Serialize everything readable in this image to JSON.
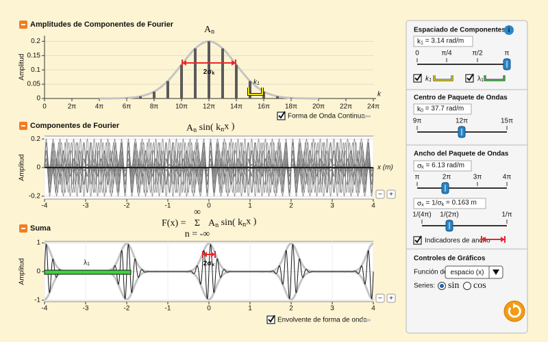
{
  "amplitudes": {
    "title": "Amplitudes de Componentes de Fourier",
    "formula": [
      {
        "text": "A"
      },
      {
        "text": "n",
        "sub": true
      }
    ],
    "y_label": "Amplitud",
    "x_label": "k",
    "k": [
      18.85,
      21.99,
      25.13,
      28.27,
      31.42,
      34.56,
      37.7,
      40.84,
      43.98,
      47.12,
      50.27,
      53.41,
      56.55
    ],
    "values": [
      0.0018,
      0.0075,
      0.024,
      0.061,
      0.118,
      0.175,
      0.2,
      0.175,
      0.118,
      0.061,
      0.024,
      0.0075,
      0.0018
    ],
    "envelope": {
      "k": [
        12.57,
        15.71,
        18.85,
        21.99,
        25.13,
        28.27,
        31.42,
        34.56,
        37.7,
        40.84,
        43.98,
        47.12,
        50.27,
        53.41,
        56.55,
        59.69,
        62.83
      ],
      "values": [
        0,
        0.0003,
        0.0018,
        0.0075,
        0.024,
        0.061,
        0.118,
        0.175,
        0.2,
        0.175,
        0.118,
        0.061,
        0.024,
        0.0075,
        0.0018,
        0.0003,
        0
      ]
    },
    "xlim": [
      0,
      75.4
    ],
    "xticks": [
      0,
      {
        "value": 6.283,
        "label": "2π"
      },
      {
        "value": 12.566,
        "label": "4π"
      },
      {
        "value": 18.85,
        "label": "6π"
      },
      {
        "value": 25.13,
        "label": "8π"
      },
      {
        "value": 31.42,
        "label": "10π"
      },
      {
        "value": 37.7,
        "label": "12π"
      },
      {
        "value": 43.98,
        "label": "14π"
      },
      {
        "value": 50.27,
        "label": "16π"
      },
      {
        "value": 56.55,
        "label": "18π"
      },
      {
        "value": 62.83,
        "label": "20π"
      },
      {
        "value": 69.12,
        "label": "22π"
      },
      {
        "value": 75.4,
        "label": "24π"
      }
    ],
    "ylim": [
      0,
      0.22
    ],
    "yticks": [
      0,
      0.05,
      0.1,
      0.15,
      0.2
    ],
    "width_label": [
      {
        "text": "2σ"
      },
      {
        "text": "k",
        "sub": true
      }
    ],
    "k1_label": [
      {
        "text": "k"
      },
      {
        "text": "1",
        "sub": true
      }
    ],
    "legend": "Forma de Onda Continua",
    "colors": {
      "bars": "#5a5a5a",
      "envelope": "#c4c4c4"
    }
  },
  "components": {
    "title": "Componentes de Fourier",
    "formula": [
      {
        "text": "A"
      },
      {
        "text": "n",
        "sub": true
      },
      {
        "text": " sin( "
      },
      {
        "text": "k"
      },
      {
        "text": "n",
        "sub": true
      },
      {
        "text": "x )"
      }
    ],
    "y_label": "Amplitud",
    "x_label": "x (m)",
    "xlim": [
      -4,
      4
    ],
    "xticks": [
      -4,
      -3,
      -2,
      -1,
      0,
      1,
      2,
      3,
      4
    ],
    "ylim": [
      -0.22,
      0.22
    ],
    "yticks": [
      -0.2,
      0,
      0.2
    ],
    "zoom": [
      "−",
      "+"
    ],
    "colors": {
      "waves": "#6a6a6a"
    }
  },
  "sum": {
    "title": "Suma",
    "formula_left": "F(x) =",
    "sigma": "Σ",
    "sigma_top": "∞",
    "sigma_bottom": "n = -∞",
    "formula_right": [
      {
        "text": "A"
      },
      {
        "text": "n",
        "sub": true
      },
      {
        "text": " sin( "
      },
      {
        "text": "k"
      },
      {
        "text": "n",
        "sub": true
      },
      {
        "text": "x )"
      }
    ],
    "y_label": "Amplitud",
    "xlim": [
      -4,
      4
    ],
    "xticks": [
      -4,
      -3,
      -2,
      -1,
      0,
      1,
      2,
      3,
      4
    ],
    "ylim": [
      -1.05,
      1.05
    ],
    "yticks": [
      -1,
      0,
      1
    ],
    "lambda_label": [
      {
        "text": "λ"
      },
      {
        "text": "1",
        "sub": true
      }
    ],
    "width_label": [
      {
        "text": "2σ"
      },
      {
        "text": "x",
        "sub": true
      }
    ],
    "zoom": [
      "−",
      "+"
    ],
    "legend": "Envolvente de forma de onda",
    "colors": {
      "sum": "#111111",
      "envelope": "#c4c4c4"
    }
  },
  "controls": {
    "spacing": {
      "title": "Espaciado de Componentes",
      "info": "i",
      "readout": [
        {
          "text": "k"
        },
        {
          "text": "1",
          "sub": true
        },
        {
          "text": " = 3.14 rad/m"
        }
      ],
      "ticks": [
        0,
        "π/4",
        "π/2",
        "π"
      ],
      "check_k": [
        {
          "text": "k"
        },
        {
          "text": "1",
          "sub": true
        }
      ],
      "check_lambda": [
        {
          "text": "λ"
        },
        {
          "text": "1",
          "sub": true
        }
      ]
    },
    "center": {
      "title": "Centro de Paquete de Ondas",
      "readout": [
        {
          "text": "k"
        },
        {
          "text": "0",
          "sub": true
        },
        {
          "text": " = 37.7 rad/m"
        }
      ],
      "ticks": [
        "9π",
        "12π",
        "15π"
      ]
    },
    "width": {
      "title": "Ancho del Paquete de Ondas",
      "readout": [
        {
          "text": "σ"
        },
        {
          "text": "k",
          "sub": true
        },
        {
          "text": " = 6.13 rad/m"
        }
      ],
      "ticks": [
        "π",
        "2π",
        "3π",
        "4π"
      ],
      "readout2": [
        {
          "text": "σ"
        },
        {
          "text": "x",
          "sub": true
        },
        {
          "text": " = 1/σ"
        },
        {
          "text": "k",
          "sub": true
        },
        {
          "text": " = 0.163 m"
        }
      ],
      "ticks2": [
        "1/(4π)",
        "1/(2π)",
        "1/π"
      ],
      "indicators": "Indicadores de ancho"
    },
    "graph": {
      "title": "Controles de Gráficos",
      "function_label": "Función de:",
      "function_value": "espacio (x)",
      "series_label": "Series:",
      "series_options": [
        "sin",
        "cos"
      ]
    }
  }
}
